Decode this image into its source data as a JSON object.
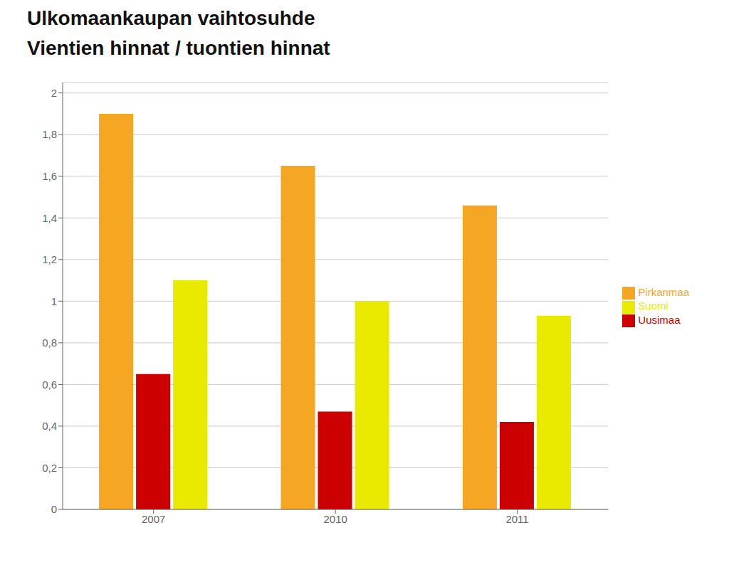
{
  "chart_data": {
    "type": "bar",
    "title": "Ulkomaankaupan vaihtosuhde",
    "subtitle": "Vientien hinnat / tuontien hinnat",
    "categories": [
      "2007",
      "2010",
      "2011"
    ],
    "series": [
      {
        "name": "Pirkanmaa",
        "color": "#F5A623",
        "values": [
          1.9,
          1.65,
          1.46
        ]
      },
      {
        "name": "Uusimaa",
        "color": "#CC0000",
        "values": [
          0.65,
          0.47,
          0.42
        ]
      },
      {
        "name": "Suomi",
        "color": "#EAEA00",
        "values": [
          1.1,
          1.0,
          0.93
        ]
      }
    ],
    "ylim": [
      0,
      2.05
    ],
    "yticks": [
      0,
      {
        "value": 0.2,
        "label": "0,2"
      },
      {
        "value": 0.4,
        "label": "0,4"
      },
      {
        "value": 0.6,
        "label": "0,6"
      },
      {
        "value": 0.8,
        "label": "0,8"
      },
      1,
      {
        "value": 1.2,
        "label": "1,2"
      },
      {
        "value": 1.4,
        "label": "1,4"
      },
      {
        "value": 1.6,
        "label": "1,6"
      },
      {
        "value": 1.8,
        "label": "1,8"
      },
      2
    ],
    "grid": true,
    "legend": "right"
  }
}
